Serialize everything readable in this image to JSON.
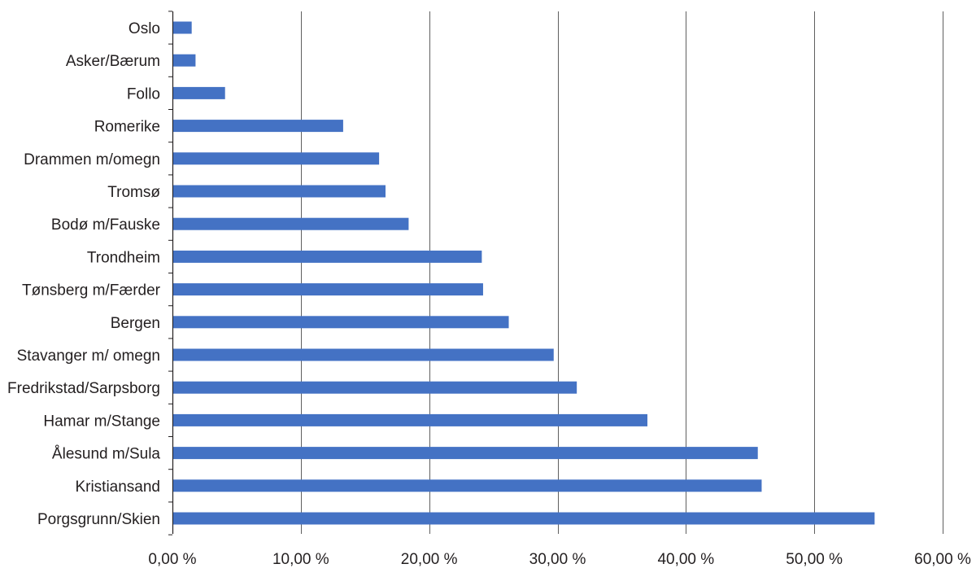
{
  "chart_data": {
    "type": "bar",
    "orientation": "horizontal",
    "categories": [
      "Oslo",
      "Asker/Bærum",
      "Follo",
      "Romerike",
      "Drammen m/omegn",
      "Tromsø",
      "Bodø m/Fauske",
      "Trondheim",
      "Tønsberg m/Færder",
      "Bergen",
      "Stavanger m/ omegn",
      "Fredrikstad/Sarpsborg",
      "Hamar m/Stange",
      "Ålesund m/Sula",
      "Kristiansand",
      "Porgsgrunn/Skien"
    ],
    "values": [
      1.5,
      1.8,
      4.1,
      13.3,
      16.1,
      16.6,
      18.4,
      24.1,
      24.2,
      26.2,
      29.7,
      31.5,
      37.0,
      45.6,
      45.9,
      54.7
    ],
    "xlim": [
      0,
      60
    ],
    "x_ticks": [
      0,
      10,
      20,
      30,
      40,
      50,
      60
    ],
    "x_tick_labels": [
      "0,00 %",
      "10,00 %",
      "20,00 %",
      "30,00 %",
      "40,00 %",
      "50,00 %",
      "60,00 %"
    ],
    "title": "",
    "xlabel": "",
    "ylabel": "",
    "grid": "vertical",
    "legend": "none",
    "colors": {
      "bar": "#4472c4",
      "grid": "#5f5f5f",
      "text": "#231f20"
    }
  }
}
